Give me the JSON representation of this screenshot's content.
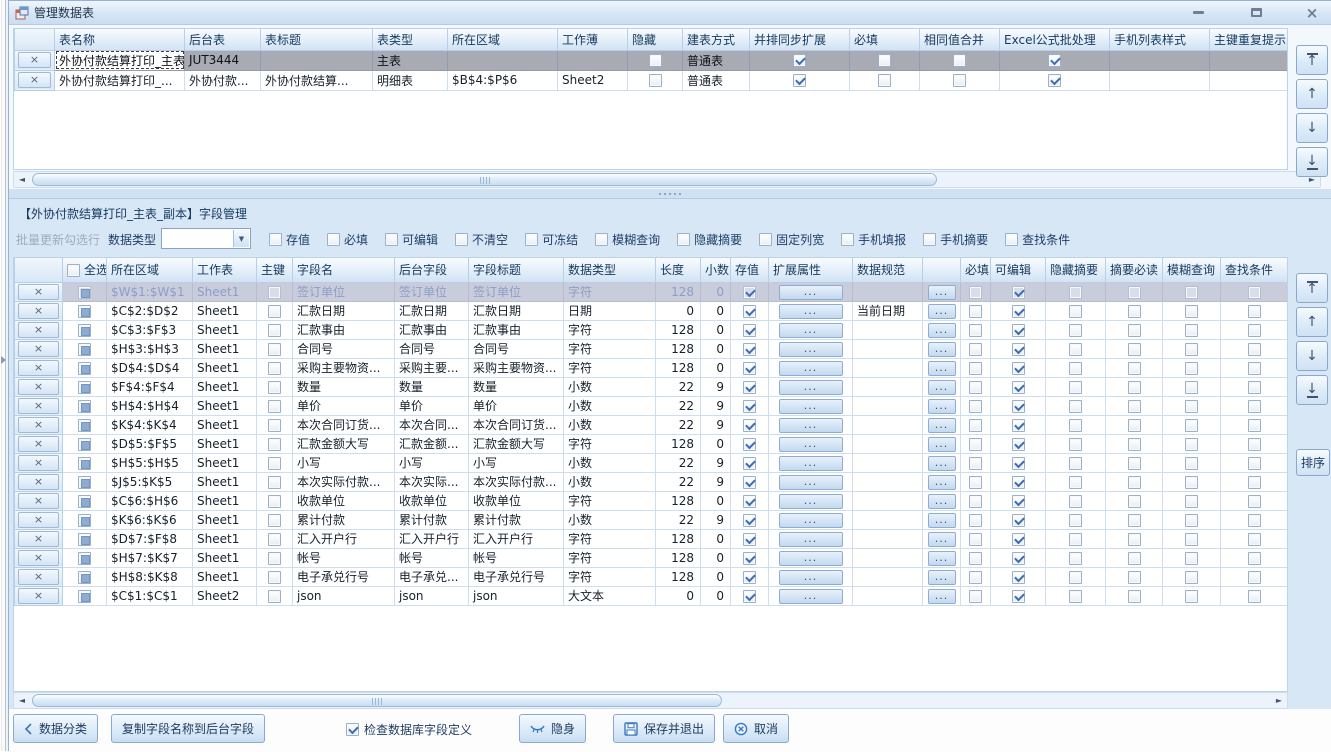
{
  "window": {
    "title": "管理数据表"
  },
  "icons": {
    "delete_glyph": "×",
    "ellipsis_glyph": "...",
    "up_glyph": "↑",
    "down_glyph": "↓",
    "left_scroll": "◄",
    "right_scroll": "►",
    "combo_arrow": "▼"
  },
  "colors": {
    "accent": "#3a78c2",
    "selected_row": "#a8aab4",
    "muted_row": "#c9ccda",
    "header_text": "#14395f"
  },
  "tables_grid": {
    "columns": [
      {
        "key": "name",
        "label": "表名称",
        "type": "text"
      },
      {
        "key": "backend",
        "label": "后台表",
        "type": "text"
      },
      {
        "key": "title",
        "label": "表标题",
        "type": "text"
      },
      {
        "key": "type",
        "label": "表类型",
        "type": "text"
      },
      {
        "key": "range",
        "label": "所在区域",
        "type": "text"
      },
      {
        "key": "book",
        "label": "工作薄",
        "type": "text"
      },
      {
        "key": "hidden",
        "label": "隐藏",
        "type": "check"
      },
      {
        "key": "method",
        "label": "建表方式",
        "type": "text"
      },
      {
        "key": "sync",
        "label": "并排同步扩展",
        "type": "check"
      },
      {
        "key": "required",
        "label": "必填",
        "type": "check"
      },
      {
        "key": "merge",
        "label": "相同值合并",
        "type": "check"
      },
      {
        "key": "excel",
        "label": "Excel公式批处理",
        "type": "check"
      },
      {
        "key": "mobile",
        "label": "手机列表样式",
        "type": "text"
      },
      {
        "key": "pk",
        "label": "主键重复提示",
        "type": "text"
      }
    ],
    "rows": [
      {
        "state": "selected",
        "edit": "name",
        "values": {
          "name": "外协付款结算打印_主表",
          "backend": "JUT3444",
          "title": "",
          "type": "主表",
          "range": "",
          "book": "",
          "hidden": false,
          "method": "普通表",
          "sync": true,
          "required": false,
          "merge": false,
          "excel": true,
          "mobile": "",
          "pk": ""
        }
      },
      {
        "values": {
          "name": "外协付款结算打印_...",
          "backend": "外协付款...",
          "title": "外协付款结算...",
          "type": "明细表",
          "range": "$B$4:$P$6",
          "book": "Sheet2",
          "hidden": false,
          "method": "普通表",
          "sync": true,
          "required": false,
          "merge": false,
          "excel": true,
          "mobile": "",
          "pk": ""
        }
      }
    ]
  },
  "fields_section": {
    "title": "【外协付款结算打印_主表_副本】字段管理",
    "toolbar": {
      "batch_update_label": "批量更新勾选行",
      "data_type_label": "数据类型",
      "combo_value": "",
      "filters": [
        "存值",
        "必填",
        "可编辑",
        "不清空",
        "可冻结",
        "模糊查询",
        "隐藏摘要",
        "固定列宽",
        "手机填报",
        "手机摘要",
        "查找条件"
      ]
    },
    "grid": {
      "columns": [
        {
          "key": "select",
          "label": "全选",
          "type": "selcheck"
        },
        {
          "key": "range",
          "label": "所在区域",
          "type": "text"
        },
        {
          "key": "sheet",
          "label": "工作表",
          "type": "text"
        },
        {
          "key": "pk",
          "label": "主键",
          "type": "check"
        },
        {
          "key": "name",
          "label": "字段名",
          "type": "text"
        },
        {
          "key": "backend",
          "label": "后台字段",
          "type": "text"
        },
        {
          "key": "title",
          "label": "字段标题",
          "type": "text"
        },
        {
          "key": "dtype",
          "label": "数据类型",
          "type": "text"
        },
        {
          "key": "len",
          "label": "长度",
          "type": "num"
        },
        {
          "key": "dec",
          "label": "小数",
          "type": "num"
        },
        {
          "key": "store",
          "label": "存值",
          "type": "check"
        },
        {
          "key": "ext",
          "label": "扩展属性",
          "type": "btn"
        },
        {
          "key": "spec",
          "label": "数据规范",
          "type": "text"
        },
        {
          "key": "dots",
          "label": "",
          "type": "btn"
        },
        {
          "key": "required",
          "label": "必填",
          "type": "check"
        },
        {
          "key": "editable",
          "label": "可编辑",
          "type": "check"
        },
        {
          "key": "hidesum",
          "label": "隐藏摘要",
          "type": "check"
        },
        {
          "key": "sumread",
          "label": "摘要必读",
          "type": "check"
        },
        {
          "key": "fuzzy",
          "label": "模糊查询",
          "type": "check"
        },
        {
          "key": "findcond",
          "label": "查找条件",
          "type": "check"
        }
      ],
      "rows": [
        {
          "state": "muted",
          "values": {
            "select": false,
            "range": "$W$1:$W$1",
            "sheet": "Sheet1",
            "pk": false,
            "name": "签订单位",
            "backend": "签订单位",
            "title": "签订单位",
            "dtype": "字符",
            "len": "128",
            "dec": "0",
            "store": true,
            "spec": "",
            "required": false,
            "editable": true,
            "hidesum": false,
            "sumread": false,
            "fuzzy": false,
            "findcond": false
          }
        },
        {
          "values": {
            "select": false,
            "range": "$C$2:$D$2",
            "sheet": "Sheet1",
            "pk": false,
            "name": "汇款日期",
            "backend": "汇款日期",
            "title": "汇款日期",
            "dtype": "日期",
            "len": "0",
            "dec": "0",
            "store": true,
            "spec": "当前日期",
            "required": false,
            "editable": true,
            "hidesum": false,
            "sumread": false,
            "fuzzy": false,
            "findcond": false
          }
        },
        {
          "values": {
            "select": false,
            "range": "$C$3:$F$3",
            "sheet": "Sheet1",
            "pk": false,
            "name": "汇款事由",
            "backend": "汇款事由",
            "title": "汇款事由",
            "dtype": "字符",
            "len": "128",
            "dec": "0",
            "store": true,
            "spec": "",
            "required": false,
            "editable": true,
            "hidesum": false,
            "sumread": false,
            "fuzzy": false,
            "findcond": false
          }
        },
        {
          "values": {
            "select": false,
            "range": "$H$3:$H$3",
            "sheet": "Sheet1",
            "pk": false,
            "name": "合同号",
            "backend": "合同号",
            "title": "合同号",
            "dtype": "字符",
            "len": "128",
            "dec": "0",
            "store": true,
            "spec": "",
            "required": false,
            "editable": true,
            "hidesum": false,
            "sumread": false,
            "fuzzy": false,
            "findcond": false
          }
        },
        {
          "values": {
            "select": false,
            "range": "$D$4:$D$4",
            "sheet": "Sheet1",
            "pk": false,
            "name": "采购主要物资...",
            "backend": "采购主要...",
            "title": "采购主要物资...",
            "dtype": "字符",
            "len": "128",
            "dec": "0",
            "store": true,
            "spec": "",
            "required": false,
            "editable": true,
            "hidesum": false,
            "sumread": false,
            "fuzzy": false,
            "findcond": false
          }
        },
        {
          "values": {
            "select": false,
            "range": "$F$4:$F$4",
            "sheet": "Sheet1",
            "pk": false,
            "name": "数量",
            "backend": "数量",
            "title": "数量",
            "dtype": "小数",
            "len": "22",
            "dec": "9",
            "store": true,
            "spec": "",
            "required": false,
            "editable": true,
            "hidesum": false,
            "sumread": false,
            "fuzzy": false,
            "findcond": false
          }
        },
        {
          "values": {
            "select": false,
            "range": "$H$4:$H$4",
            "sheet": "Sheet1",
            "pk": false,
            "name": "单价",
            "backend": "单价",
            "title": "单价",
            "dtype": "小数",
            "len": "22",
            "dec": "9",
            "store": true,
            "spec": "",
            "required": false,
            "editable": true,
            "hidesum": false,
            "sumread": false,
            "fuzzy": false,
            "findcond": false
          }
        },
        {
          "values": {
            "select": false,
            "range": "$K$4:$K$4",
            "sheet": "Sheet1",
            "pk": false,
            "name": "本次合同订货...",
            "backend": "本次合同...",
            "title": "本次合同订货...",
            "dtype": "小数",
            "len": "22",
            "dec": "9",
            "store": true,
            "spec": "",
            "required": false,
            "editable": true,
            "hidesum": false,
            "sumread": false,
            "fuzzy": false,
            "findcond": false
          }
        },
        {
          "values": {
            "select": false,
            "range": "$D$5:$F$5",
            "sheet": "Sheet1",
            "pk": false,
            "name": "汇款金额大写",
            "backend": "汇款金额...",
            "title": "汇款金额大写",
            "dtype": "字符",
            "len": "128",
            "dec": "0",
            "store": true,
            "spec": "",
            "required": false,
            "editable": true,
            "hidesum": false,
            "sumread": false,
            "fuzzy": false,
            "findcond": false
          }
        },
        {
          "values": {
            "select": false,
            "range": "$H$5:$H$5",
            "sheet": "Sheet1",
            "pk": false,
            "name": "小写",
            "backend": "小写",
            "title": "小写",
            "dtype": "小数",
            "len": "22",
            "dec": "9",
            "store": true,
            "spec": "",
            "required": false,
            "editable": true,
            "hidesum": false,
            "sumread": false,
            "fuzzy": false,
            "findcond": false
          }
        },
        {
          "values": {
            "select": false,
            "range": "$J$5:$K$5",
            "sheet": "Sheet1",
            "pk": false,
            "name": "本次实际付款...",
            "backend": "本次实际...",
            "title": "本次实际付款...",
            "dtype": "小数",
            "len": "22",
            "dec": "9",
            "store": true,
            "spec": "",
            "required": false,
            "editable": true,
            "hidesum": false,
            "sumread": false,
            "fuzzy": false,
            "findcond": false
          }
        },
        {
          "values": {
            "select": false,
            "range": "$C$6:$H$6",
            "sheet": "Sheet1",
            "pk": false,
            "name": "收款单位",
            "backend": "收款单位",
            "title": "收款单位",
            "dtype": "字符",
            "len": "128",
            "dec": "0",
            "store": true,
            "spec": "",
            "required": false,
            "editable": true,
            "hidesum": false,
            "sumread": false,
            "fuzzy": false,
            "findcond": false
          }
        },
        {
          "values": {
            "select": false,
            "range": "$K$6:$K$6",
            "sheet": "Sheet1",
            "pk": false,
            "name": "累计付款",
            "backend": "累计付款",
            "title": "累计付款",
            "dtype": "小数",
            "len": "22",
            "dec": "9",
            "store": true,
            "spec": "",
            "required": false,
            "editable": true,
            "hidesum": false,
            "sumread": false,
            "fuzzy": false,
            "findcond": false
          }
        },
        {
          "values": {
            "select": false,
            "range": "$D$7:$F$8",
            "sheet": "Sheet1",
            "pk": false,
            "name": "汇入开户行",
            "backend": "汇入开户行",
            "title": "汇入开户行",
            "dtype": "字符",
            "len": "128",
            "dec": "0",
            "store": true,
            "spec": "",
            "required": false,
            "editable": true,
            "hidesum": false,
            "sumread": false,
            "fuzzy": false,
            "findcond": false
          }
        },
        {
          "values": {
            "select": false,
            "range": "$H$7:$K$7",
            "sheet": "Sheet1",
            "pk": false,
            "name": "帐号",
            "backend": "帐号",
            "title": "帐号",
            "dtype": "字符",
            "len": "128",
            "dec": "0",
            "store": true,
            "spec": "",
            "required": false,
            "editable": true,
            "hidesum": false,
            "sumread": false,
            "fuzzy": false,
            "findcond": false
          }
        },
        {
          "values": {
            "select": false,
            "range": "$H$8:$K$8",
            "sheet": "Sheet1",
            "pk": false,
            "name": "电子承兑行号",
            "backend": "电子承兑...",
            "title": "电子承兑行号",
            "dtype": "字符",
            "len": "128",
            "dec": "0",
            "store": true,
            "spec": "",
            "required": false,
            "editable": true,
            "hidesum": false,
            "sumread": false,
            "fuzzy": false,
            "findcond": false
          }
        },
        {
          "values": {
            "select": false,
            "range": "$C$1:$C$1",
            "sheet": "Sheet2",
            "pk": false,
            "name": "json",
            "backend": "json",
            "title": "json",
            "dtype": "大文本",
            "len": "0",
            "dec": "0",
            "store": true,
            "spec": "",
            "required": false,
            "editable": true,
            "hidesum": false,
            "sumread": false,
            "fuzzy": false,
            "findcond": false
          }
        }
      ]
    },
    "sort_button": "排序"
  },
  "footer": {
    "category_button": "数据分类",
    "copy_button": "复制字段名称到后台字段",
    "check_db_label": "检查数据库字段定义",
    "check_db_checked": true,
    "stealth_button": "隐身",
    "save_button": "保存并退出",
    "cancel_button": "取消"
  }
}
